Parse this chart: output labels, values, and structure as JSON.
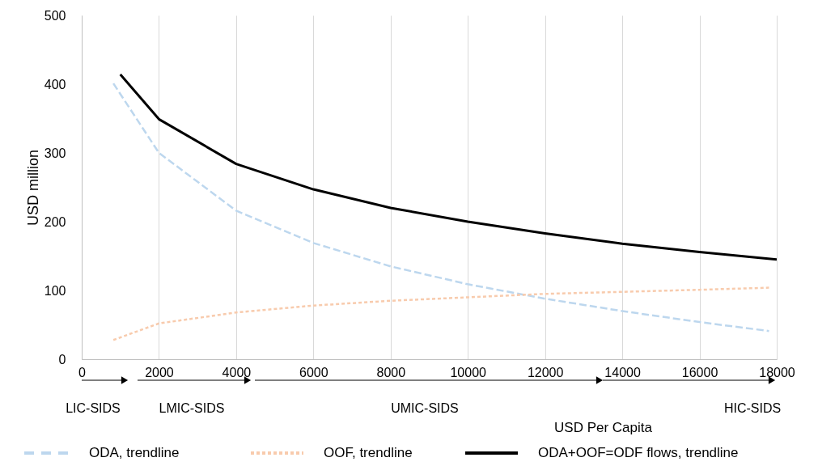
{
  "chart_data": {
    "type": "line",
    "xlabel": "USD Per Capita",
    "ylabel": "USD million",
    "xlim": [
      0,
      18000
    ],
    "xticks": [
      0,
      2000,
      4000,
      6000,
      8000,
      10000,
      12000,
      14000,
      16000,
      18000
    ],
    "ylim": [
      0,
      500
    ],
    "yticks": [
      0,
      100,
      200,
      300,
      400,
      500
    ],
    "grid": "x",
    "legend": "bottom",
    "annotations": [
      "LIC-SIDS",
      "LMIC-SIDS",
      "UMIC-SIDS",
      "HIC-SIDS"
    ],
    "series": [
      {
        "name": "ODA, trendline",
        "color": "#bdd7ee",
        "line_style": "dashed",
        "x": [
          820,
          2000,
          4000,
          6000,
          8000,
          10000,
          12000,
          14000,
          16000,
          17800
        ],
        "values": [
          401,
          300,
          216,
          169,
          135,
          109,
          88,
          70,
          54,
          41
        ]
      },
      {
        "name": "OOF, trendline",
        "color": "#f8cbad",
        "line_style": "dotted",
        "x": [
          820,
          2000,
          4000,
          6000,
          8000,
          10000,
          12000,
          14000,
          16000,
          17800
        ],
        "values": [
          28,
          52,
          68,
          78,
          85,
          90,
          95,
          98,
          101,
          104
        ]
      },
      {
        "name": "ODA+OOF=ODF flows, trendline",
        "color": "#000000",
        "line_style": "solid",
        "x": [
          1000,
          2000,
          4000,
          6000,
          8000,
          10000,
          12000,
          14000,
          16000,
          18000
        ],
        "values": [
          414,
          349,
          284,
          247,
          220,
          200,
          183,
          168,
          156,
          145
        ]
      }
    ]
  }
}
